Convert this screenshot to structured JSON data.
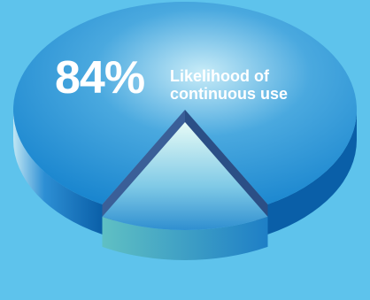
{
  "chart_data": {
    "type": "pie",
    "categories": [
      "Likelihood of continuous use",
      ""
    ],
    "values": [
      84,
      16
    ],
    "value_label": "84%",
    "caption_line1": "Likelihood of",
    "caption_line2": "continuous use",
    "style": "3d-exploded",
    "colors": {
      "background": "#5ec3ec",
      "main_slice": "#1a86cf",
      "main_slice_light": "#c8ecf8",
      "exploded_slice": "#2f8fd0",
      "exploded_slice_light": "#e6fbf6",
      "rim": "#0a5fa8",
      "rim_light": "#bfe6f4",
      "cut_face": "#3a5f98",
      "text": "#ffffff"
    }
  }
}
